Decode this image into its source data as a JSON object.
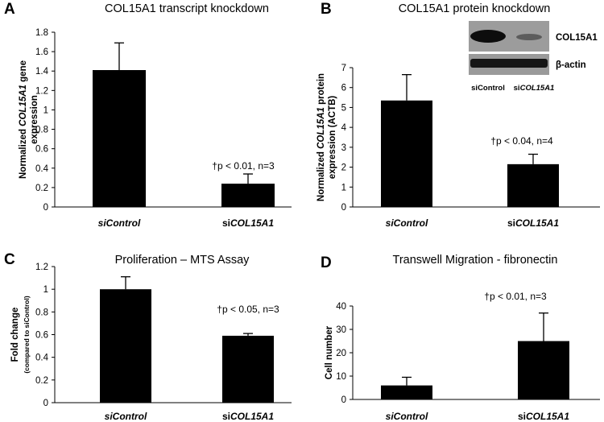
{
  "chart_data": [
    {
      "panel": "A",
      "type": "bar",
      "title": "COL15A1 transcript knockdown",
      "ylabel_parts": [
        "Normalized ",
        "COL15A1",
        " gene",
        "expression"
      ],
      "categories": [
        [
          "",
          "siControl"
        ],
        [
          "si",
          "COL15A1"
        ]
      ],
      "values": [
        1.41,
        0.24
      ],
      "errors": [
        0.28,
        0.1
      ],
      "ylim": [
        0,
        1.8
      ],
      "yticks": [
        "0",
        "0.2",
        "0.4",
        "0.6",
        "0.8",
        "1",
        "1.2",
        "1.4",
        "1.6",
        "1.8"
      ],
      "annotation": "†p < 0.01, n=3",
      "grid": false
    },
    {
      "panel": "B",
      "type": "bar",
      "title": "COL15A1 protein knockdown",
      "ylabel_parts": [
        "Normalized ",
        "COL15A1",
        " protein",
        "expression (ACTB)"
      ],
      "categories": [
        [
          "",
          "siControl"
        ],
        [
          "si",
          "COL15A1"
        ]
      ],
      "values": [
        5.35,
        2.15
      ],
      "errors": [
        1.3,
        0.5
      ],
      "ylim": [
        0,
        7
      ],
      "yticks": [
        "0",
        "1",
        "2",
        "3",
        "4",
        "5",
        "6",
        "7"
      ],
      "annotation": "†p < 0.04, n=4",
      "grid": false,
      "inset_blot": {
        "bands": [
          "COL15A1",
          "β-actin"
        ],
        "lanes": [
          [
            "",
            "siControl"
          ],
          [
            "si",
            "COL15A1"
          ]
        ]
      }
    },
    {
      "panel": "C",
      "type": "bar",
      "title": "Proliferation – MTS Assay",
      "ylabel_parts": [
        "Fold change",
        "(compared to siControl)"
      ],
      "categories": [
        [
          "",
          "siControl"
        ],
        [
          "si",
          "COL15A1"
        ]
      ],
      "values": [
        1.0,
        0.59
      ],
      "errors": [
        0.11,
        0.02
      ],
      "ylim": [
        0,
        1.2
      ],
      "yticks": [
        "0",
        "0.2",
        "0.4",
        "0.6",
        "0.8",
        "1",
        "1.2"
      ],
      "annotation": "†p < 0.05, n=3",
      "grid": false
    },
    {
      "panel": "D",
      "type": "bar",
      "title": "Transwell Migration - fibronectin",
      "ylabel_parts": [
        "Cell number"
      ],
      "categories": [
        [
          "",
          "siControl"
        ],
        [
          "si",
          "COL15A1"
        ]
      ],
      "values": [
        6.0,
        25.0
      ],
      "errors": [
        3.5,
        12.0
      ],
      "ylim": [
        0,
        40
      ],
      "yticks": [
        "0",
        "10",
        "20",
        "30",
        "40"
      ],
      "annotation": "†p < 0.01, n=3",
      "grid": false
    }
  ]
}
